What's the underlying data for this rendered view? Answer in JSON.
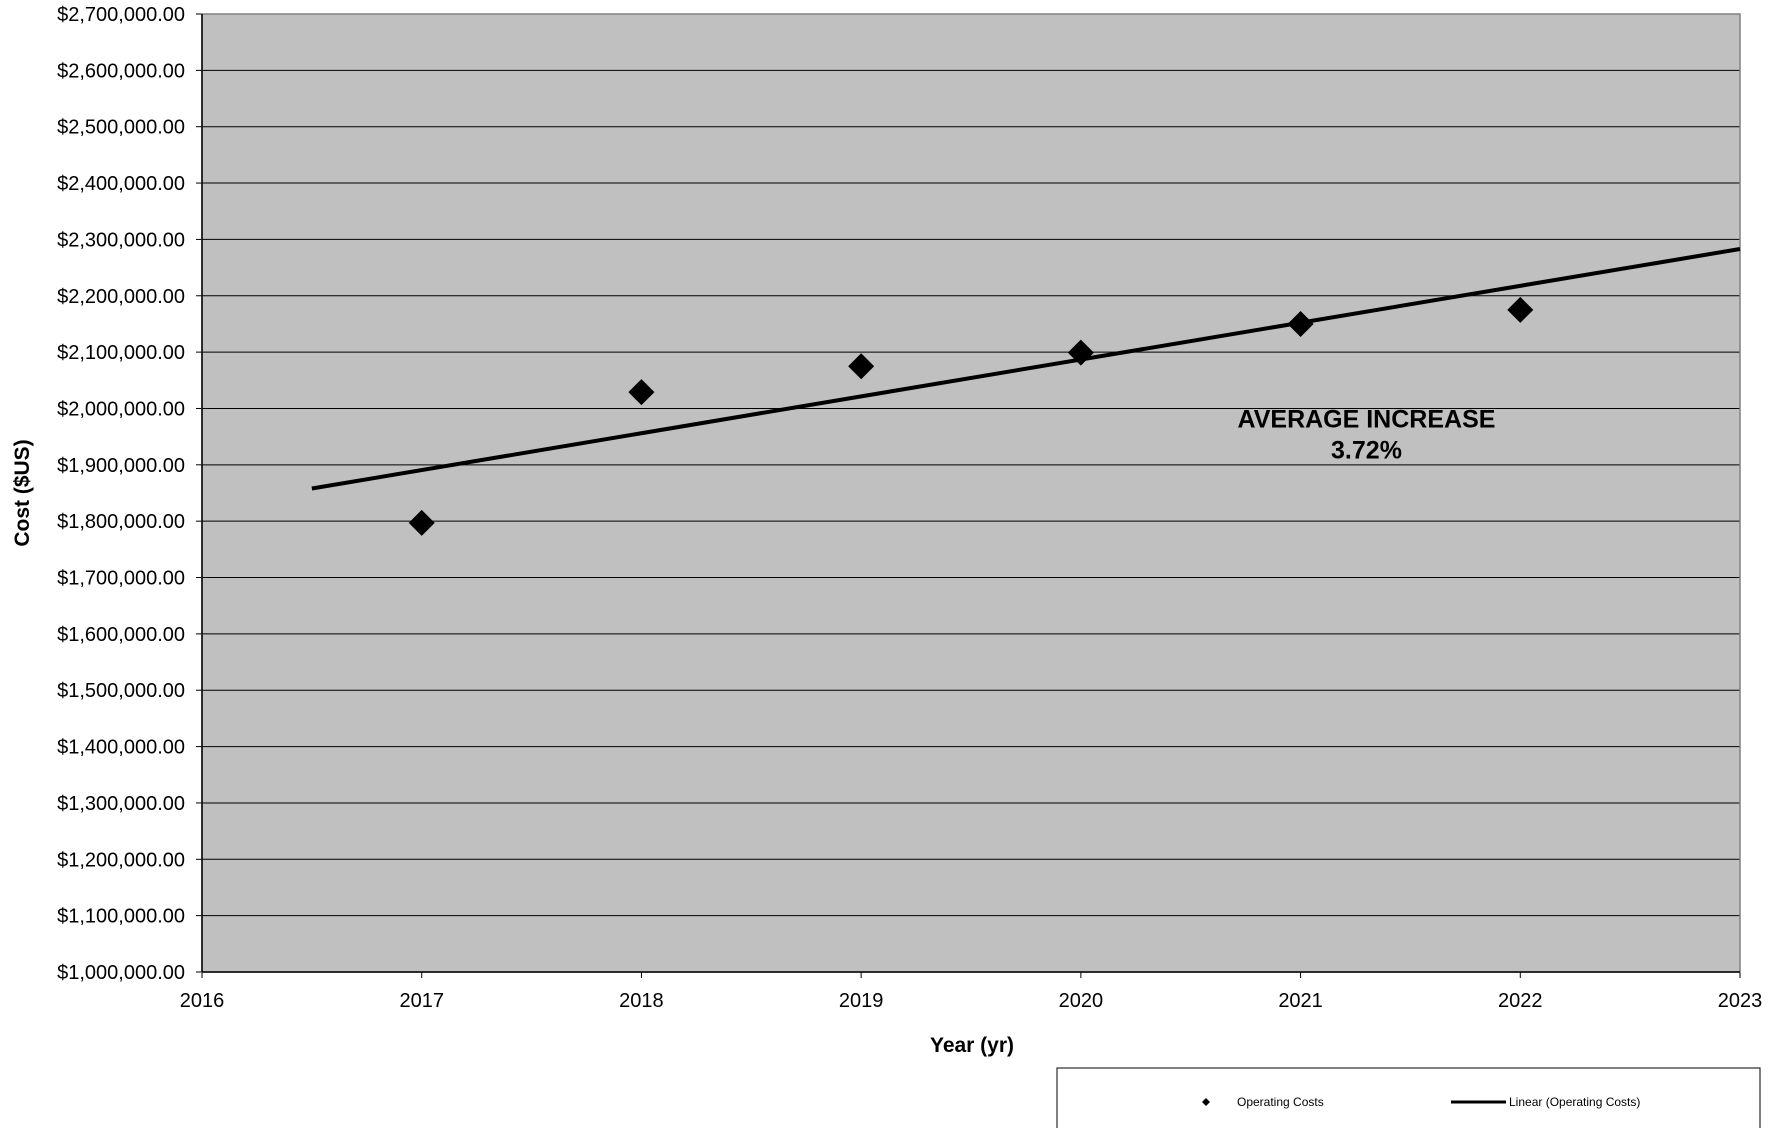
{
  "chart_data": {
    "type": "scatter",
    "xlabel": "Year (yr)",
    "ylabel": "Cost ($US)",
    "xlim": [
      2016,
      2023
    ],
    "ylim": [
      1000000,
      2700000
    ],
    "x_ticks": [
      2016,
      2017,
      2018,
      2019,
      2020,
      2021,
      2022,
      2023
    ],
    "x_tick_labels": [
      "2016",
      "2017",
      "2018",
      "2019",
      "2020",
      "2021",
      "2022",
      "2023"
    ],
    "y_ticks": [
      1000000,
      1100000,
      1200000,
      1300000,
      1400000,
      1500000,
      1600000,
      1700000,
      1800000,
      1900000,
      2000000,
      2100000,
      2200000,
      2300000,
      2400000,
      2500000,
      2600000,
      2700000
    ],
    "y_tick_labels": [
      "$1,000,000.00",
      "$1,100,000.00",
      "$1,200,000.00",
      "$1,300,000.00",
      "$1,400,000.00",
      "$1,500,000.00",
      "$1,600,000.00",
      "$1,700,000.00",
      "$1,800,000.00",
      "$1,900,000.00",
      "$2,000,000.00",
      "$2,100,000.00",
      "$2,200,000.00",
      "$2,300,000.00",
      "$2,400,000.00",
      "$2,500,000.00",
      "$2,600,000.00",
      "$2,700,000.00"
    ],
    "grid": true,
    "series": [
      {
        "name": "Operating Costs",
        "marker": "diamond",
        "x": [
          2017,
          2018,
          2019,
          2020,
          2021,
          2022
        ],
        "y": [
          1797000,
          2029000,
          2075000,
          2099000,
          2150000,
          2175000
        ]
      },
      {
        "name": "Linear (Operating Costs)",
        "style": "line",
        "x": [
          2016.5,
          2023
        ],
        "y": [
          1858000,
          2283000
        ]
      }
    ],
    "annotations": [
      {
        "line1": "AVERAGE INCREASE",
        "line2": "3.72%",
        "x": 2021.3,
        "y": 2000000
      }
    ],
    "legend": {
      "placement": "bottom-right"
    },
    "colors": {
      "plot_background": "#c0c0c0",
      "marker": "#000000",
      "trendline": "#000000",
      "grid": "#000000"
    }
  }
}
